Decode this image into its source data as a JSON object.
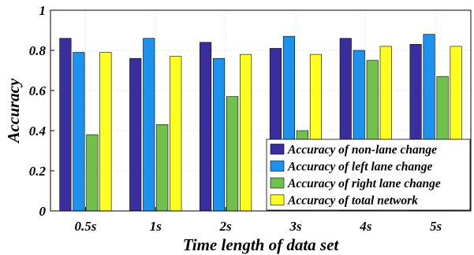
{
  "chart_data": {
    "type": "bar",
    "xlabel": "Time length of data set",
    "ylabel": "Accuracy",
    "ylim": [
      0,
      1
    ],
    "yticks": [
      0,
      0.2,
      0.4,
      0.6,
      0.8,
      1
    ],
    "ytick_labels": [
      "0",
      "0.2",
      "0.4",
      "0.6",
      "0.8",
      "1"
    ],
    "grid": true,
    "legend_position": "bottom-right",
    "categories": [
      "0.5s",
      "1s",
      "2s",
      "3s",
      "4s",
      "5s"
    ],
    "series": [
      {
        "name": "Accuracy of non-lane change",
        "color": "#3a2d9e",
        "values": [
          0.86,
          0.76,
          0.84,
          0.81,
          0.86,
          0.83
        ]
      },
      {
        "name": "Accuracy of left lane change",
        "color": "#1b93ee",
        "values": [
          0.79,
          0.86,
          0.76,
          0.87,
          0.8,
          0.88
        ]
      },
      {
        "name": "Accuracy of right lane change",
        "color": "#72c04c",
        "values": [
          0.38,
          0.43,
          0.57,
          0.4,
          0.75,
          0.67
        ]
      },
      {
        "name": "Accuracy of total network",
        "color": "#ffff1e",
        "values": [
          0.79,
          0.77,
          0.78,
          0.78,
          0.82,
          0.82
        ]
      }
    ]
  }
}
